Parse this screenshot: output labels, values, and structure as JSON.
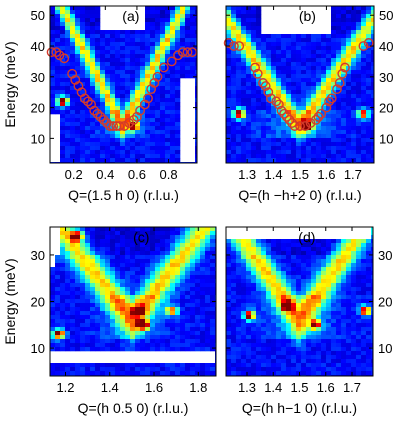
{
  "colors": {
    "colormap": [
      "#00008f",
      "#0000ff",
      "#0080ff",
      "#00ffff",
      "#80ff80",
      "#ffff00",
      "#ff8000",
      "#ff0000",
      "#800000"
    ],
    "markers": "#d43a2a",
    "mask": "#ffffff"
  },
  "chart_data": [
    {
      "id": "a",
      "type": "heatmap",
      "panel_label": "(a)",
      "xlabel": "Q=(1.5 h 0) (r.l.u.)",
      "ylabel": "Energy (meV)",
      "xlim": [
        0.05,
        0.98
      ],
      "ylim": [
        2,
        53
      ],
      "xticks": [
        0.2,
        0.4,
        0.6,
        0.8
      ],
      "xtick_labels": [
        "0.2",
        "0.4",
        "0.6",
        "0.8"
      ],
      "yticks": [
        10,
        20,
        30,
        40,
        50
      ],
      "ytick_labels": [
        "10",
        "20",
        "30",
        "40",
        "50"
      ],
      "ytick_side": "left",
      "dispersion": {
        "center": 0.51,
        "min_energy": 14,
        "slope": 100
      },
      "bright_spots": [
        {
          "x": 0.13,
          "y": 22,
          "value": 1.0
        },
        {
          "x": 0.58,
          "y": 14,
          "value": 0.9
        }
      ],
      "mask_regions": [
        {
          "x": [
            0.05,
            0.1
          ],
          "y": [
            2,
            18
          ]
        },
        {
          "x": [
            0.87,
            0.98
          ],
          "y": [
            2,
            30
          ]
        },
        {
          "x": [
            0.37,
            0.66
          ],
          "y": [
            45,
            53
          ]
        }
      ],
      "points": [
        {
          "x": 0.06,
          "y": 38
        },
        {
          "x": 0.09,
          "y": 38
        },
        {
          "x": 0.11,
          "y": 37
        },
        {
          "x": 0.14,
          "y": 36
        },
        {
          "x": 0.19,
          "y": 31
        },
        {
          "x": 0.21,
          "y": 29
        },
        {
          "x": 0.23,
          "y": 27
        },
        {
          "x": 0.25,
          "y": 25
        },
        {
          "x": 0.27,
          "y": 23
        },
        {
          "x": 0.29,
          "y": 22
        },
        {
          "x": 0.31,
          "y": 21
        },
        {
          "x": 0.33,
          "y": 19
        },
        {
          "x": 0.35,
          "y": 18
        },
        {
          "x": 0.37,
          "y": 17
        },
        {
          "x": 0.39,
          "y": 16
        },
        {
          "x": 0.41,
          "y": 15
        },
        {
          "x": 0.43,
          "y": 14
        },
        {
          "x": 0.45,
          "y": 14
        },
        {
          "x": 0.47,
          "y": 14
        },
        {
          "x": 0.49,
          "y": 14
        },
        {
          "x": 0.52,
          "y": 14
        },
        {
          "x": 0.55,
          "y": 15
        },
        {
          "x": 0.58,
          "y": 16
        },
        {
          "x": 0.6,
          "y": 17
        },
        {
          "x": 0.62,
          "y": 19
        },
        {
          "x": 0.65,
          "y": 21
        },
        {
          "x": 0.67,
          "y": 23
        },
        {
          "x": 0.69,
          "y": 26
        },
        {
          "x": 0.71,
          "y": 28
        },
        {
          "x": 0.73,
          "y": 30
        },
        {
          "x": 0.77,
          "y": 33
        },
        {
          "x": 0.82,
          "y": 35
        },
        {
          "x": 0.86,
          "y": 37
        },
        {
          "x": 0.89,
          "y": 38
        },
        {
          "x": 0.92,
          "y": 38
        },
        {
          "x": 0.95,
          "y": 38
        }
      ]
    },
    {
      "id": "b",
      "type": "heatmap",
      "panel_label": "(b)",
      "xlabel": "Q=(h −h+2 0) (r.l.u.)",
      "ylabel": "",
      "xlim": [
        1.22,
        1.78
      ],
      "ylim": [
        2,
        53
      ],
      "xticks": [
        1.3,
        1.4,
        1.5,
        1.6,
        1.7
      ],
      "xtick_labels": [
        "1.3",
        "1.4",
        "1.5",
        "1.6",
        "1.7"
      ],
      "yticks": [
        10,
        20,
        30,
        40,
        50
      ],
      "ytick_labels": [
        "10",
        "20",
        "30",
        "40",
        "50"
      ],
      "ytick_side": "right",
      "dispersion": {
        "center": 1.5,
        "min_energy": 14,
        "slope": 125
      },
      "bright_spots": [
        {
          "x": 1.27,
          "y": 18,
          "value": 1.0
        },
        {
          "x": 1.53,
          "y": 14,
          "value": 0.9
        },
        {
          "x": 1.74,
          "y": 18,
          "value": 0.8
        }
      ],
      "mask_regions": [
        {
          "x": [
            1.36,
            1.62
          ],
          "y": [
            44,
            53
          ]
        }
      ],
      "points": [
        {
          "x": 1.23,
          "y": 41
        },
        {
          "x": 1.25,
          "y": 40
        },
        {
          "x": 1.27,
          "y": 40
        },
        {
          "x": 1.33,
          "y": 33
        },
        {
          "x": 1.34,
          "y": 31
        },
        {
          "x": 1.36,
          "y": 28
        },
        {
          "x": 1.37,
          "y": 27
        },
        {
          "x": 1.38,
          "y": 25
        },
        {
          "x": 1.39,
          "y": 23
        },
        {
          "x": 1.41,
          "y": 22
        },
        {
          "x": 1.42,
          "y": 21
        },
        {
          "x": 1.43,
          "y": 19
        },
        {
          "x": 1.44,
          "y": 18
        },
        {
          "x": 1.45,
          "y": 17
        },
        {
          "x": 1.46,
          "y": 16
        },
        {
          "x": 1.47,
          "y": 15
        },
        {
          "x": 1.48,
          "y": 14
        },
        {
          "x": 1.5,
          "y": 14
        },
        {
          "x": 1.52,
          "y": 14
        },
        {
          "x": 1.54,
          "y": 15
        },
        {
          "x": 1.56,
          "y": 16
        },
        {
          "x": 1.57,
          "y": 17
        },
        {
          "x": 1.58,
          "y": 18
        },
        {
          "x": 1.6,
          "y": 20
        },
        {
          "x": 1.61,
          "y": 22
        },
        {
          "x": 1.62,
          "y": 23
        },
        {
          "x": 1.64,
          "y": 26
        },
        {
          "x": 1.65,
          "y": 28
        },
        {
          "x": 1.66,
          "y": 31
        },
        {
          "x": 1.67,
          "y": 33
        },
        {
          "x": 1.74,
          "y": 40
        },
        {
          "x": 1.76,
          "y": 41
        }
      ]
    },
    {
      "id": "c",
      "type": "heatmap",
      "panel_label": "(c)",
      "xlabel": "Q=(h 0.5 0) (r.l.u.)",
      "ylabel": "Energy (meV)",
      "xlim": [
        1.13,
        1.88
      ],
      "ylim": [
        4,
        36
      ],
      "xticks": [
        1.2,
        1.4,
        1.6,
        1.8
      ],
      "xtick_labels": [
        "1.2",
        "1.4",
        "1.6",
        "1.8"
      ],
      "yticks": [
        10,
        20,
        30
      ],
      "ytick_labels": [
        "10",
        "20",
        "30"
      ],
      "ytick_side": "left",
      "dispersion": {
        "center": 1.5,
        "min_energy": 16,
        "slope": 60
      },
      "bright_spots": [
        {
          "x": 1.55,
          "y": 15,
          "value": 1.0
        },
        {
          "x": 1.17,
          "y": 13,
          "value": 0.95
        },
        {
          "x": 1.53,
          "y": 18,
          "value": 0.75
        },
        {
          "x": 1.68,
          "y": 18,
          "value": 0.7
        },
        {
          "x": 1.25,
          "y": 34,
          "value": 1.0
        }
      ],
      "mask_regions": [
        {
          "x": [
            1.13,
            1.88
          ],
          "y": [
            7,
            9.5
          ]
        },
        {
          "x": [
            1.13,
            1.18
          ],
          "y": [
            30,
            36
          ]
        },
        {
          "x": [
            1.13,
            1.15
          ],
          "y": [
            27,
            36
          ]
        }
      ],
      "points": []
    },
    {
      "id": "d",
      "type": "heatmap",
      "panel_label": "(d)",
      "xlabel": "Q=(h h−1 0) (r.l.u.)",
      "ylabel": "",
      "xlim": [
        1.22,
        1.78
      ],
      "ylim": [
        4,
        36
      ],
      "xticks": [
        1.3,
        1.4,
        1.5,
        1.6,
        1.7
      ],
      "xtick_labels": [
        "1.3",
        "1.4",
        "1.5",
        "1.6",
        "1.7"
      ],
      "yticks": [
        10,
        20,
        30
      ],
      "ytick_labels": [
        "10",
        "20",
        "30"
      ],
      "ytick_side": "right",
      "dispersion": {
        "center": 1.5,
        "min_energy": 16,
        "slope": 80
      },
      "bright_spots": [
        {
          "x": 1.31,
          "y": 17,
          "value": 1.0
        },
        {
          "x": 1.75,
          "y": 18,
          "value": 1.0
        },
        {
          "x": 1.56,
          "y": 15,
          "value": 0.9
        },
        {
          "x": 1.45,
          "y": 19,
          "value": 0.75
        }
      ],
      "mask_regions": [
        {
          "x": [
            1.22,
            1.78
          ],
          "y": [
            33,
            36
          ]
        }
      ],
      "points": []
    }
  ]
}
